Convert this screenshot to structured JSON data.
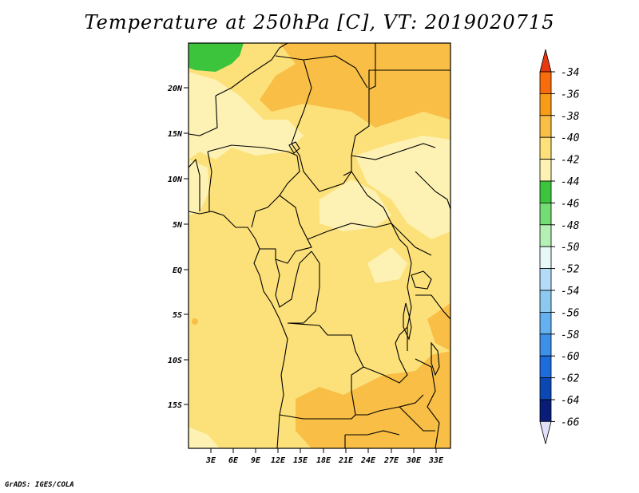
{
  "title": "Temperature at 250hPa [C], VT: 2019020715",
  "credit": "GrADS: IGES/COLA",
  "map": {
    "lon_labels": [
      "3E",
      "6E",
      "9E",
      "12E",
      "15E",
      "18E",
      "21E",
      "24E",
      "27E",
      "30E",
      "33E"
    ],
    "lat_labels": [
      "20N",
      "15N",
      "10N",
      "5N",
      "EQ",
      "5S",
      "10S",
      "15S"
    ],
    "colors": {
      "minus40_to_42": "#fce17a",
      "minus42_to_44": "#fdf2b4",
      "minus38_to_40": "#f8be45",
      "minus46_to_44": "#3cc43c"
    }
  },
  "colorbar": {
    "labels": [
      "-34",
      "-36",
      "-38",
      "-40",
      "-42",
      "-44",
      "-46",
      "-48",
      "-50",
      "-52",
      "-54",
      "-56",
      "-58",
      "-60",
      "-62",
      "-64",
      "-66"
    ],
    "colors": [
      "#e83810",
      "#f86c0c",
      "#f89c18",
      "#f8be45",
      "#fce17a",
      "#fdf2b4",
      "#3cc43c",
      "#74dc74",
      "#b4f0b4",
      "#e8f8f8",
      "#b4dcf8",
      "#8cc8f0",
      "#64b0f0",
      "#3c90e8",
      "#1c6cdc",
      "#0c48b4",
      "#081c78"
    ],
    "under_color": "#e0e0f8"
  }
}
